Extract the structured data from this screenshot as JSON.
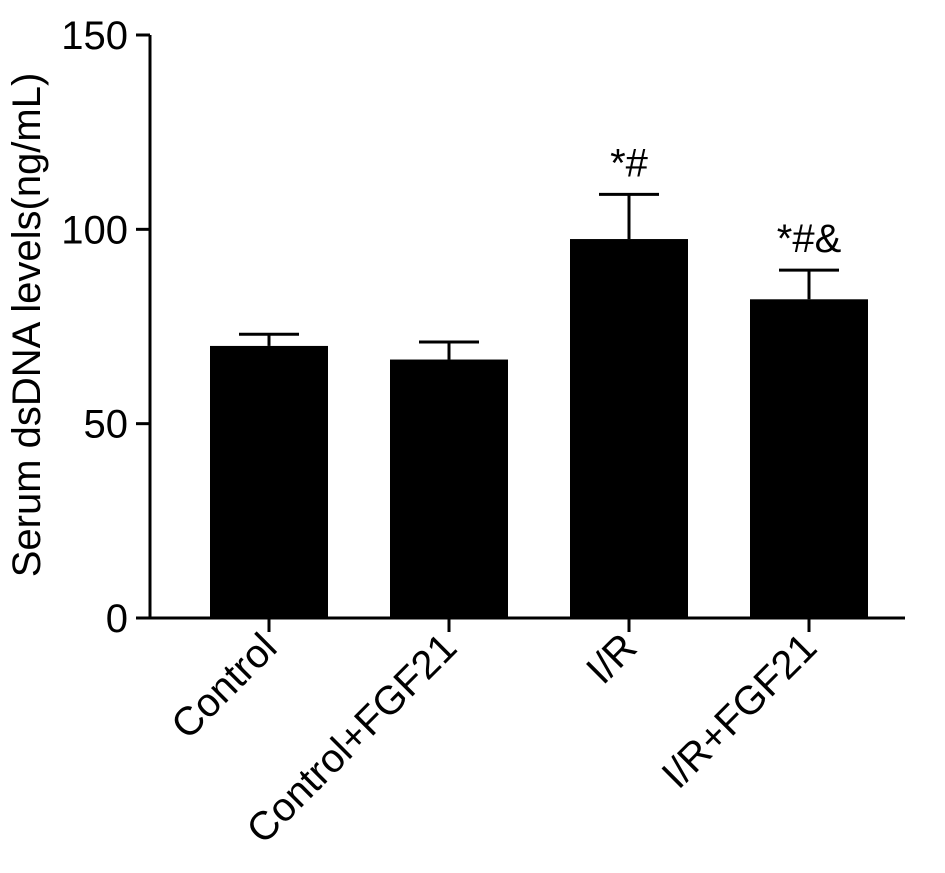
{
  "chart_data": {
    "type": "bar",
    "title": "",
    "xlabel": "",
    "ylabel": "Serum dsDNA levels(ng/mL)",
    "ylim": [
      0,
      150
    ],
    "yticks": [
      0,
      50,
      100,
      150
    ],
    "categories": [
      "Control",
      "Control+FGF21",
      "I/R",
      "I/R+FGF21"
    ],
    "values": [
      70,
      66.5,
      97.5,
      82
    ],
    "error": [
      3,
      4.5,
      11.5,
      7.5
    ],
    "annotations": [
      "",
      "",
      "*#",
      "*#&"
    ],
    "bar_color": "#000000",
    "grid": false
  }
}
